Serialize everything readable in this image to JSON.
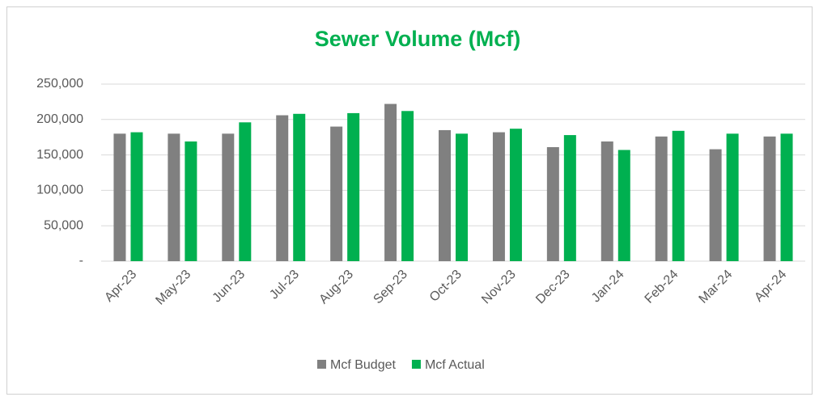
{
  "chart_data": {
    "type": "bar",
    "title": "Sewer Volume (Mcf)",
    "categories": [
      "Apr-23",
      "May-23",
      "Jun-23",
      "Jul-23",
      "Aug-23",
      "Sep-23",
      "Oct-23",
      "Nov-23",
      "Dec-23",
      "Jan-24",
      "Feb-24",
      "Mar-24",
      "Apr-24"
    ],
    "series": [
      {
        "name": "Mcf Budget",
        "color": "#808080",
        "values": [
          180000,
          180000,
          180000,
          206000,
          190000,
          222000,
          185000,
          182000,
          161000,
          169000,
          176000,
          158000,
          176000
        ]
      },
      {
        "name": "Mcf Actual",
        "color": "#00b050",
        "values": [
          182000,
          169000,
          196000,
          208000,
          209000,
          212000,
          180000,
          187000,
          178000,
          157000,
          184000,
          180000,
          180000
        ]
      }
    ],
    "ylim": [
      0,
      250000
    ],
    "yticks": [
      {
        "value": 0,
        "label": "-"
      },
      {
        "value": 50000,
        "label": "50,000"
      },
      {
        "value": 100000,
        "label": "100,000"
      },
      {
        "value": 150000,
        "label": "150,000"
      },
      {
        "value": 200000,
        "label": "200,000"
      },
      {
        "value": 250000,
        "label": "250,000"
      }
    ],
    "grid": true,
    "legend": "bottom"
  }
}
